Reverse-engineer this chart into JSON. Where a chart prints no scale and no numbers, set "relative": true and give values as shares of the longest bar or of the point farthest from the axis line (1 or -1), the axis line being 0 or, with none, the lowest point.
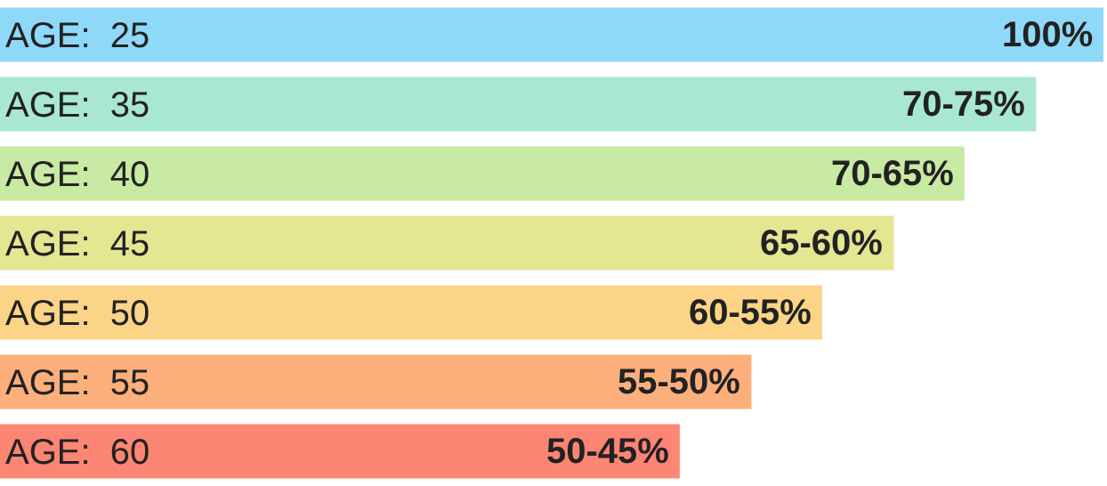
{
  "chart_data": {
    "type": "bar",
    "orientation": "horizontal",
    "relative": true,
    "categories": [
      "AGE:  25",
      "AGE:  35",
      "AGE:  40",
      "AGE:  45",
      "AGE:  50",
      "AGE:  55",
      "AGE:  60"
    ],
    "values": [
      1,
      0.939,
      0.874,
      0.81,
      0.745,
      0.681,
      0.616
    ],
    "colors": [
      "#8fd9f8",
      "#a8e8d2",
      "#c8eaa2",
      "#e4e692",
      "#fcd487",
      "#fdaf7b",
      "#fd8573"
    ],
    "annotations": [
      {
        "text": "100%",
        "x": 1,
        "y": "AGE:  25"
      },
      {
        "text": "70-75%",
        "x": 0.939,
        "y": "AGE:  35"
      },
      {
        "text": "70-65%",
        "x": 0.874,
        "y": "AGE:  40"
      },
      {
        "text": "65-60%",
        "x": 0.81,
        "y": "AGE:  45"
      },
      {
        "text": "60-55%",
        "x": 0.745,
        "y": "AGE:  50"
      },
      {
        "text": "55-50%",
        "x": 0.681,
        "y": "AGE:  55"
      },
      {
        "text": "50-45%",
        "x": 0.616,
        "y": "AGE:  60"
      }
    ]
  }
}
